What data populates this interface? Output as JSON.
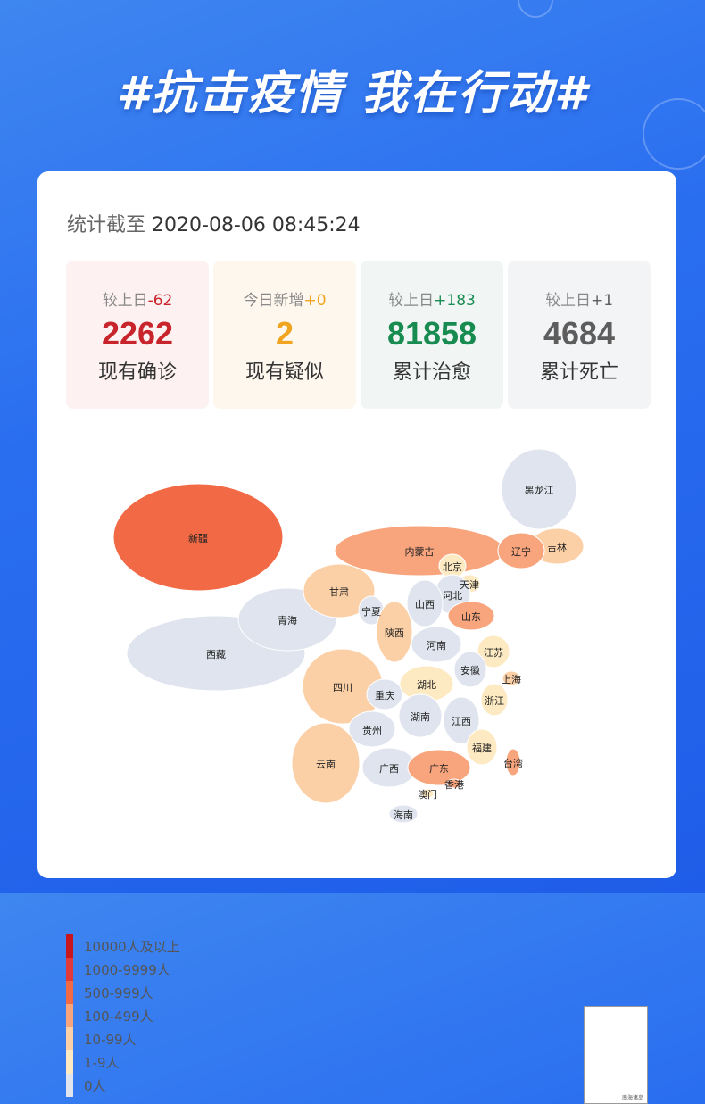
{
  "banner": "#抗击疫情 我在行动#",
  "timestamp": {
    "label": "统计截至",
    "value": "2020-08-06 08:45:24"
  },
  "stats": [
    {
      "delta_label": "较上日",
      "delta": "-62",
      "value": "2262",
      "title": "现有确诊",
      "color": "#c8242b",
      "bg": "#fdf1f1",
      "delta_color": "#c8242b"
    },
    {
      "delta_label": "今日新增",
      "delta": "+0",
      "value": "2",
      "title": "现有疑似",
      "color": "#f0a420",
      "bg": "#fef7ee",
      "delta_color": "#f0a420"
    },
    {
      "delta_label": "较上日",
      "delta": "+183",
      "value": "81858",
      "title": "累计治愈",
      "color": "#178b50",
      "bg": "#f1f6f5",
      "delta_color": "#178b50"
    },
    {
      "delta_label": "较上日",
      "delta": "+1",
      "value": "4684",
      "title": "累计死亡",
      "color": "#5d5d5d",
      "bg": "#f2f4f6",
      "delta_color": "#5d5d5d"
    }
  ],
  "legend": [
    {
      "label": "10000人及以上",
      "color": "#c7161d"
    },
    {
      "label": "1000-9999人",
      "color": "#e2393a"
    },
    {
      "label": "500-999人",
      "color": "#f26a45"
    },
    {
      "label": "100-499人",
      "color": "#f8a57e"
    },
    {
      "label": "10-99人",
      "color": "#fcd0a6"
    },
    {
      "label": "1-9人",
      "color": "#feeac2"
    },
    {
      "label": "0人",
      "color": "#dfe4ee"
    }
  ],
  "provinces": [
    {
      "name": "新疆",
      "level": 2
    },
    {
      "name": "西藏",
      "level": 6
    },
    {
      "name": "青海",
      "level": 6
    },
    {
      "name": "甘肃",
      "level": 4
    },
    {
      "name": "内蒙古",
      "level": 3
    },
    {
      "name": "黑龙江",
      "level": 6
    },
    {
      "name": "吉林",
      "level": 4
    },
    {
      "name": "辽宁",
      "level": 3
    },
    {
      "name": "北京",
      "level": 5
    },
    {
      "name": "天津",
      "level": 5
    },
    {
      "name": "河北",
      "level": 6
    },
    {
      "name": "山西",
      "level": 6
    },
    {
      "name": "宁夏",
      "level": 6
    },
    {
      "name": "陕西",
      "level": 4
    },
    {
      "name": "山东",
      "level": 3
    },
    {
      "name": "河南",
      "level": 6
    },
    {
      "name": "江苏",
      "level": 5
    },
    {
      "name": "安徽",
      "level": 6
    },
    {
      "name": "上海",
      "level": 4
    },
    {
      "name": "四川",
      "level": 4
    },
    {
      "name": "重庆",
      "level": 6
    },
    {
      "name": "湖北",
      "level": 5
    },
    {
      "name": "浙江",
      "level": 5
    },
    {
      "name": "湖南",
      "level": 6
    },
    {
      "name": "江西",
      "level": 6
    },
    {
      "name": "贵州",
      "level": 6
    },
    {
      "name": "云南",
      "level": 4
    },
    {
      "name": "福建",
      "level": 5
    },
    {
      "name": "广西",
      "level": 6
    },
    {
      "name": "广东",
      "level": 3
    },
    {
      "name": "台湾",
      "level": 3
    },
    {
      "name": "香港",
      "level": 3
    },
    {
      "name": "澳门",
      "level": 5
    },
    {
      "name": "海南",
      "level": 6
    }
  ],
  "inset_caption": "南海诸岛"
}
